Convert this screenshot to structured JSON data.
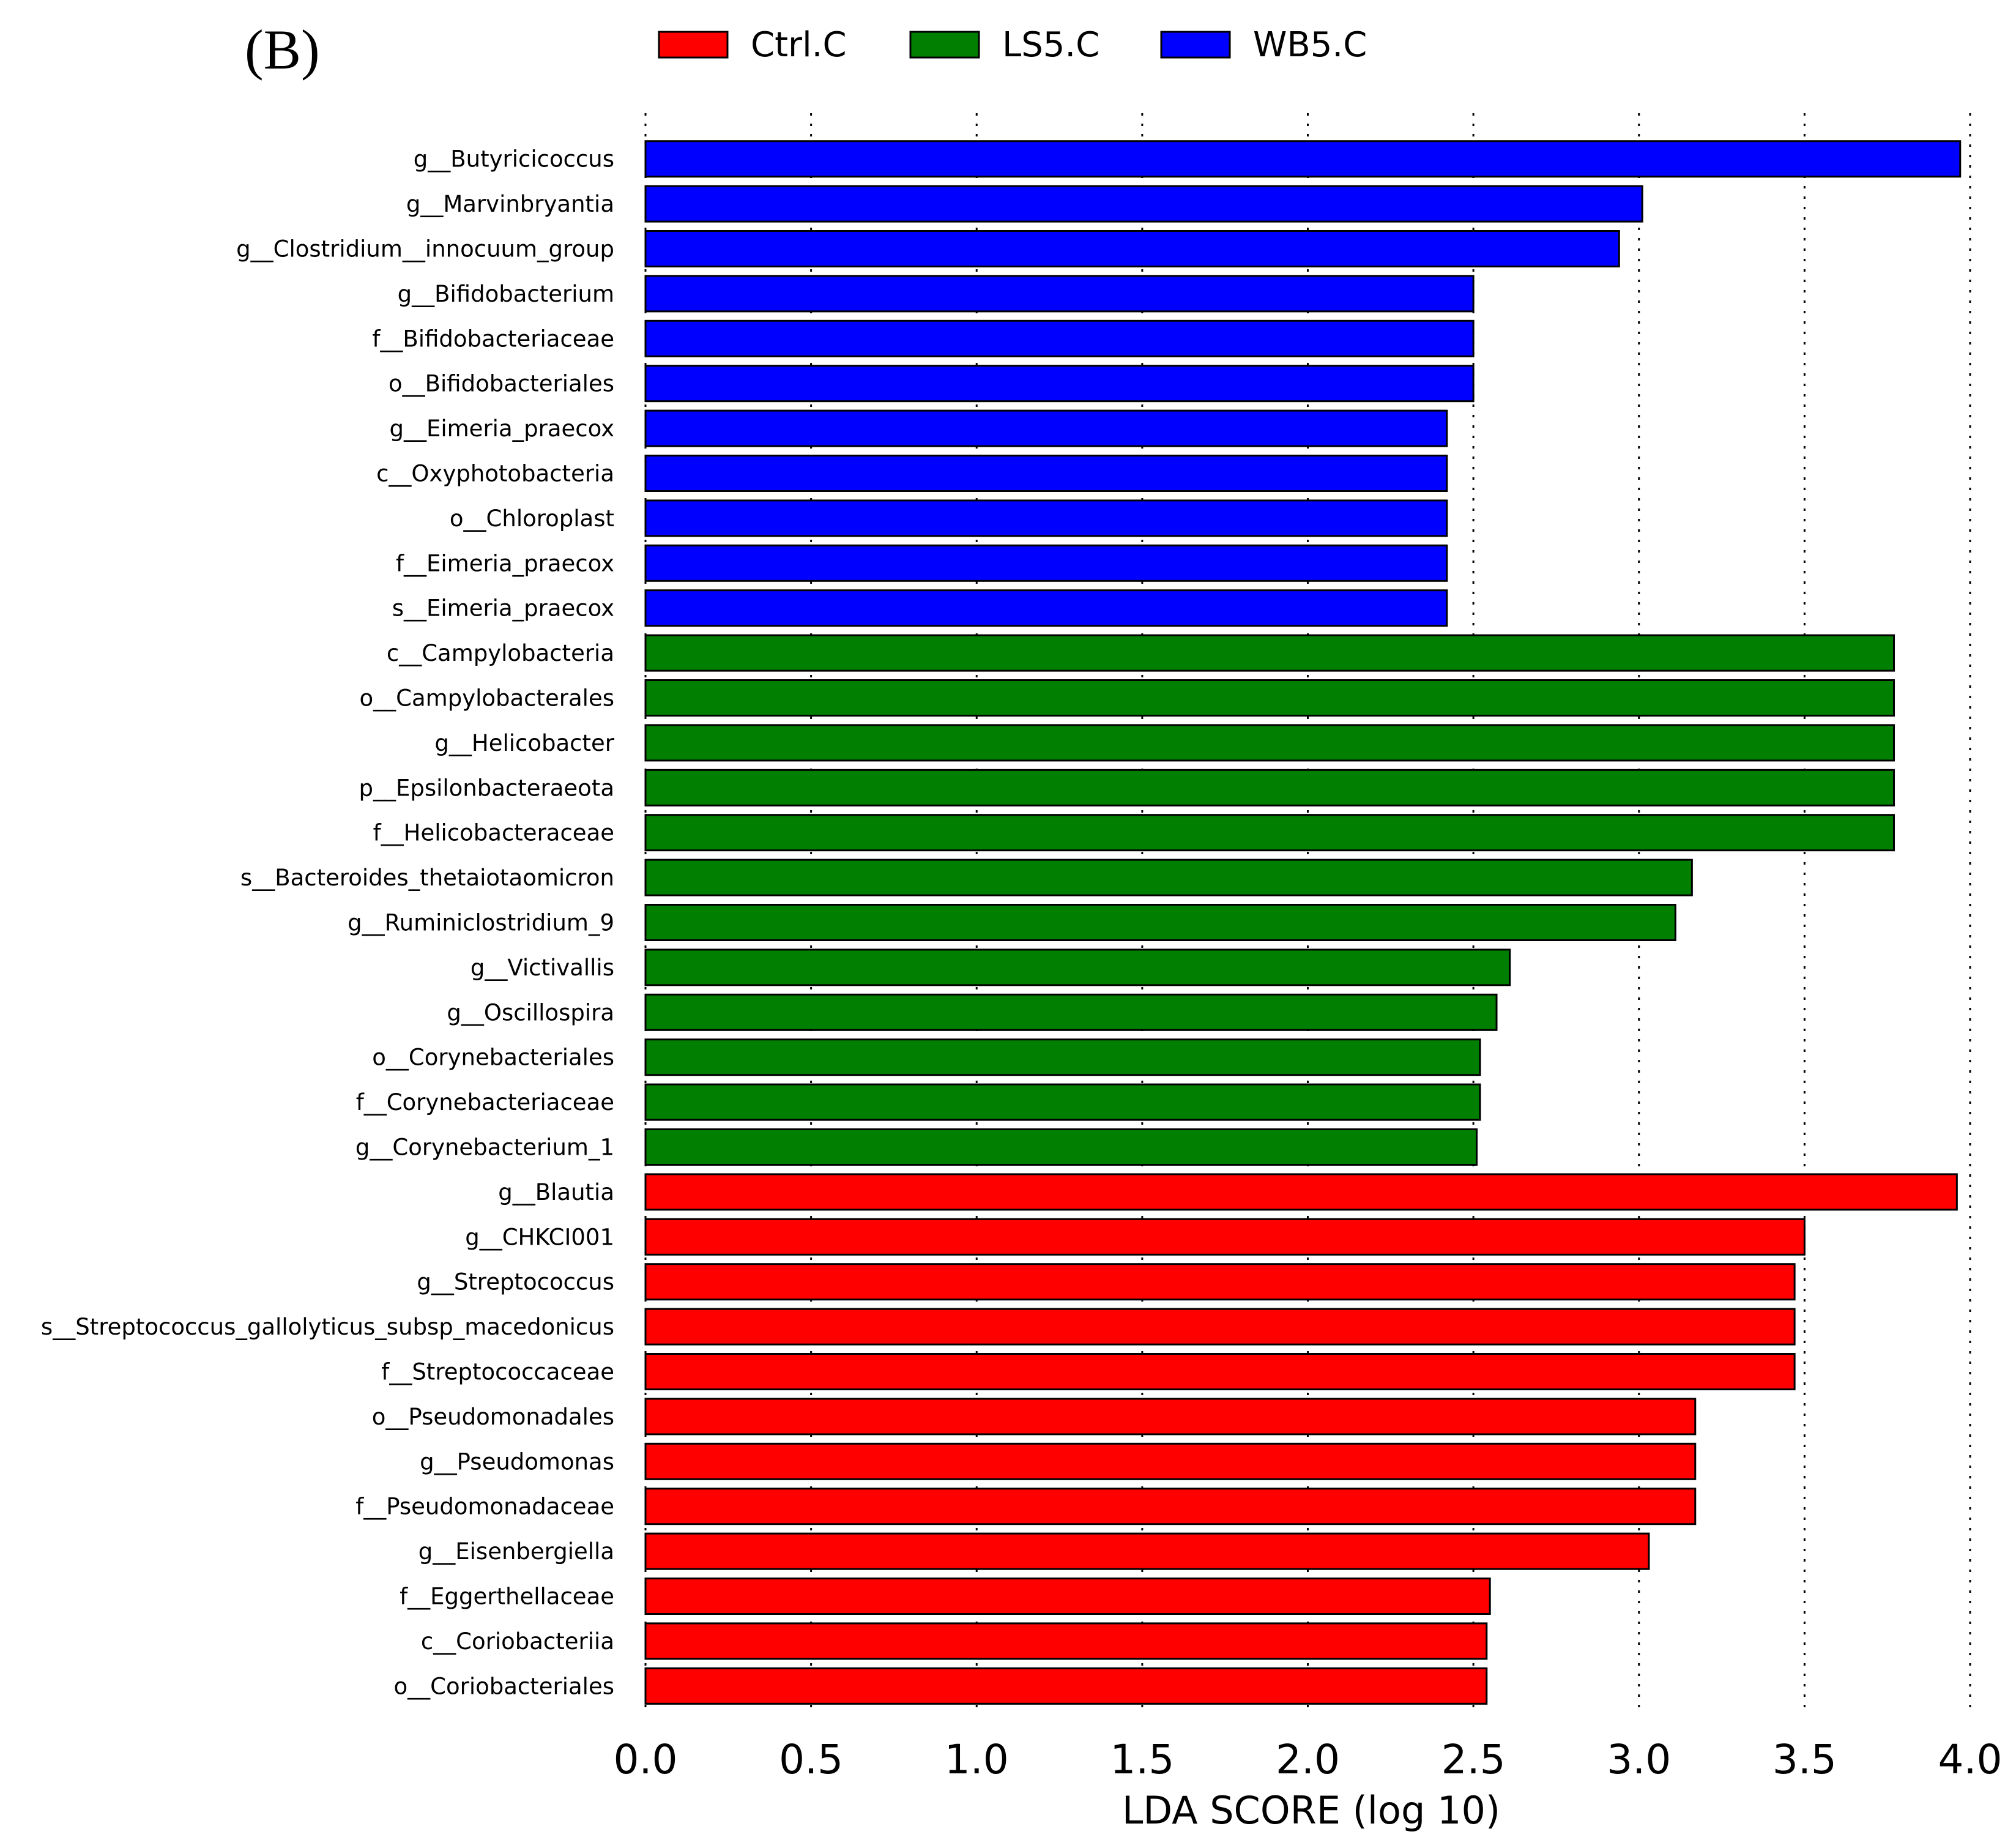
{
  "chart_data": {
    "type": "bar",
    "orientation": "horizontal",
    "panel_label": "(B)",
    "xlabel": "LDA SCORE (log 10)",
    "xlim": [
      0,
      4.0
    ],
    "xticks": [
      "0.0",
      "0.5",
      "1.0",
      "1.5",
      "2.0",
      "2.5",
      "3.0",
      "3.5",
      "4.0"
    ],
    "grid": "vertical dotted",
    "legend_position": "top",
    "legend": [
      {
        "name": "Ctrl.C",
        "color": "#ff0000"
      },
      {
        "name": "LS5.C",
        "color": "#007f00"
      },
      {
        "name": "WB5.C",
        "color": "#0000ff"
      }
    ],
    "bars": [
      {
        "label": "g__Butyricicoccus",
        "value": 3.97,
        "group": "WB5.C"
      },
      {
        "label": "g__Marvinbryantia",
        "value": 3.01,
        "group": "WB5.C"
      },
      {
        "label": "g__Clostridium__innocuum_group",
        "value": 2.94,
        "group": "WB5.C"
      },
      {
        "label": "g__Bifidobacterium",
        "value": 2.5,
        "group": "WB5.C"
      },
      {
        "label": "f__Bifidobacteriaceae",
        "value": 2.5,
        "group": "WB5.C"
      },
      {
        "label": "o__Bifidobacteriales",
        "value": 2.5,
        "group": "WB5.C"
      },
      {
        "label": "g__Eimeria_praecox",
        "value": 2.42,
        "group": "WB5.C"
      },
      {
        "label": "c__Oxyphotobacteria",
        "value": 2.42,
        "group": "WB5.C"
      },
      {
        "label": "o__Chloroplast",
        "value": 2.42,
        "group": "WB5.C"
      },
      {
        "label": "f__Eimeria_praecox",
        "value": 2.42,
        "group": "WB5.C"
      },
      {
        "label": "s__Eimeria_praecox",
        "value": 2.42,
        "group": "WB5.C"
      },
      {
        "label": "c__Campylobacteria",
        "value": 3.77,
        "group": "LS5.C"
      },
      {
        "label": "o__Campylobacterales",
        "value": 3.77,
        "group": "LS5.C"
      },
      {
        "label": "g__Helicobacter",
        "value": 3.77,
        "group": "LS5.C"
      },
      {
        "label": "p__Epsilonbacteraeota",
        "value": 3.77,
        "group": "LS5.C"
      },
      {
        "label": "f__Helicobacteraceae",
        "value": 3.77,
        "group": "LS5.C"
      },
      {
        "label": "s__Bacteroides_thetaiotaomicron",
        "value": 3.16,
        "group": "LS5.C"
      },
      {
        "label": "g__Ruminiclostridium_9",
        "value": 3.11,
        "group": "LS5.C"
      },
      {
        "label": "g__Victivallis",
        "value": 2.61,
        "group": "LS5.C"
      },
      {
        "label": "g__Oscillospira",
        "value": 2.57,
        "group": "LS5.C"
      },
      {
        "label": "o__Corynebacteriales",
        "value": 2.52,
        "group": "LS5.C"
      },
      {
        "label": "f__Corynebacteriaceae",
        "value": 2.52,
        "group": "LS5.C"
      },
      {
        "label": "g__Corynebacterium_1",
        "value": 2.51,
        "group": "LS5.C"
      },
      {
        "label": "g__Blautia",
        "value": 3.96,
        "group": "Ctrl.C"
      },
      {
        "label": "g__CHKCI001",
        "value": 3.5,
        "group": "Ctrl.C"
      },
      {
        "label": "g__Streptococcus",
        "value": 3.47,
        "group": "Ctrl.C"
      },
      {
        "label": "s__Streptococcus_gallolyticus_subsp_macedonicus",
        "value": 3.47,
        "group": "Ctrl.C"
      },
      {
        "label": "f__Streptococcaceae",
        "value": 3.47,
        "group": "Ctrl.C"
      },
      {
        "label": "o__Pseudomonadales",
        "value": 3.17,
        "group": "Ctrl.C"
      },
      {
        "label": "g__Pseudomonas",
        "value": 3.17,
        "group": "Ctrl.C"
      },
      {
        "label": "f__Pseudomonadaceae",
        "value": 3.17,
        "group": "Ctrl.C"
      },
      {
        "label": "g__Eisenbergiella",
        "value": 3.03,
        "group": "Ctrl.C"
      },
      {
        "label": "f__Eggerthellaceae",
        "value": 2.55,
        "group": "Ctrl.C"
      },
      {
        "label": "c__Coriobacteriia",
        "value": 2.54,
        "group": "Ctrl.C"
      },
      {
        "label": "o__Coriobacteriales",
        "value": 2.54,
        "group": "Ctrl.C"
      }
    ]
  }
}
